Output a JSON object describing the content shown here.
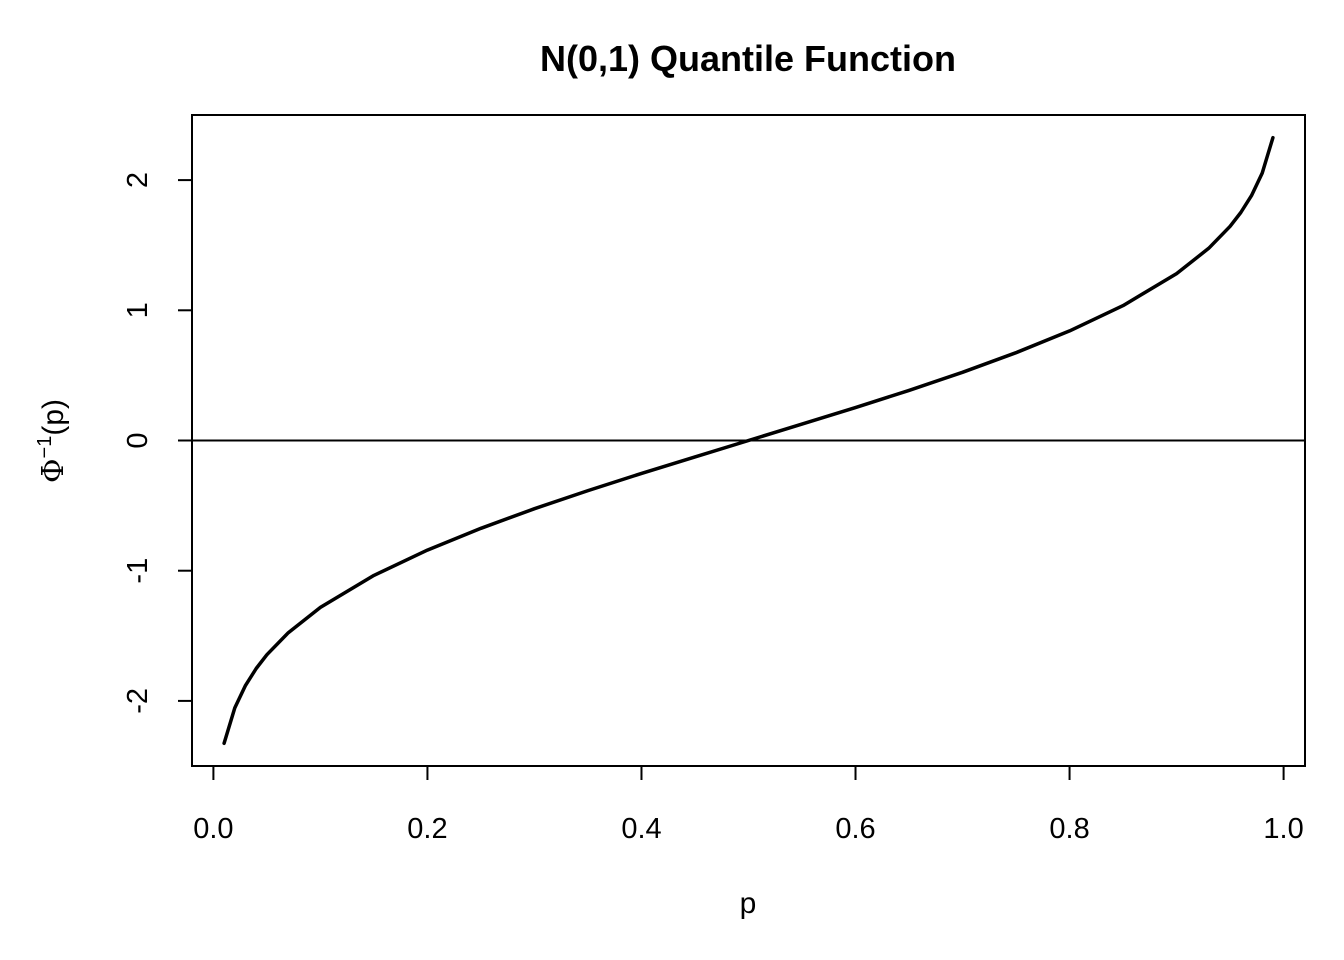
{
  "chart_data": {
    "type": "line",
    "title": "N(0,1) Quantile Function",
    "xlabel": "p",
    "ylabel": {
      "symbol": "Φ",
      "superscript": "−1",
      "suffix": "(p)"
    },
    "xlim": [
      -0.02,
      1.02
    ],
    "ylim": [
      -2.5,
      2.5
    ],
    "x_ticks": [
      0.0,
      0.2,
      0.4,
      0.6,
      0.8,
      1.0
    ],
    "x_tick_labels": [
      "0.0",
      "0.2",
      "0.4",
      "0.6",
      "0.8",
      "1.0"
    ],
    "y_ticks": [
      -2,
      -1,
      0,
      1,
      2
    ],
    "y_tick_labels": [
      "-2",
      "-1",
      "0",
      "1",
      "2"
    ],
    "hline": 0,
    "series": [
      {
        "x": [
          0.01,
          0.02,
          0.03,
          0.04,
          0.05,
          0.07,
          0.1,
          0.15,
          0.2,
          0.25,
          0.3,
          0.35,
          0.4,
          0.45,
          0.5,
          0.55,
          0.6,
          0.65,
          0.7,
          0.75,
          0.8,
          0.85,
          0.9,
          0.93,
          0.95,
          0.96,
          0.97,
          0.98,
          0.99
        ],
        "y": [
          -2.326,
          -2.054,
          -1.881,
          -1.751,
          -1.645,
          -1.476,
          -1.282,
          -1.036,
          -0.842,
          -0.674,
          -0.524,
          -0.385,
          -0.253,
          -0.126,
          0.0,
          0.126,
          0.253,
          0.385,
          0.524,
          0.674,
          0.842,
          1.036,
          1.282,
          1.476,
          1.645,
          1.751,
          1.881,
          2.054,
          2.326
        ]
      }
    ],
    "grid": false,
    "legend": "none"
  }
}
